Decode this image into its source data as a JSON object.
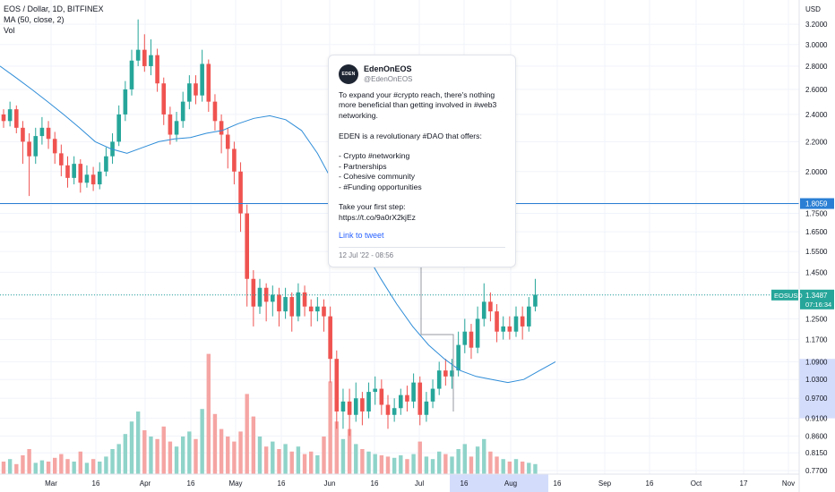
{
  "legend": {
    "symbol_line": "EOS / Dollar, 1D, BITFINEX",
    "ma_line": "MA (50, close, 2)",
    "vol_line": "Vol"
  },
  "colors": {
    "up": "#26a69a",
    "down": "#ef5350",
    "vol_up": "#8fd3c9",
    "vol_down": "#f5a5a3",
    "ma": "#2f8dd8",
    "hline": "#2a7fd4",
    "price_line": "#26a69a",
    "time_highlight": "#d3dcfb",
    "price_highlight": "#d3dcfb"
  },
  "tweet": {
    "name": "EdenOnEOS",
    "handle": "@EdenOnEOS",
    "avatar_text": "EDEN",
    "body": "To expand your #crypto reach, there's nothing more beneficial than getting involved in #web3 networking.\n\nEDEN is a revolutionary #DAO that offers:\n\n- Crypto #networking\n- Partnerships\n- Cohesive community\n- #Funding opportunities\n\nTake your first step:\nhttps://t.co/9a0rX2kjEz",
    "link_label": "Link to tweet",
    "date": "12 Jul '22 - 08:56"
  },
  "chart_data": {
    "type": "candlestick",
    "symbol": "EOSUSD",
    "currency_label": "USD",
    "y_scale": "log",
    "ylim": [
      0.755,
      3.38
    ],
    "price_ticks": [
      "3.2000",
      "3.0000",
      "2.8000",
      "2.6000",
      "2.4000",
      "2.2000",
      "2.0000",
      "1.8000",
      "1.7500",
      "1.6500",
      "1.5500",
      "1.4500",
      "1.3500",
      "1.2500",
      "1.1700",
      "1.0900",
      "1.0300",
      "0.9700",
      "0.9100",
      "0.8600",
      "0.8150",
      "0.7700"
    ],
    "time_ticks": [
      "Mar",
      "16",
      "Apr",
      "16",
      "May",
      "16",
      "Jun",
      "16",
      "Jul",
      "16",
      "Aug",
      "16",
      "Sep",
      "16",
      "Oct",
      "17",
      "Nov"
    ],
    "horizontal_line": {
      "value": 1.8059,
      "label": "1.8059"
    },
    "last_price": {
      "value": 1.3487,
      "label": "1.3487",
      "countdown": "07:16:34",
      "tag": "EOSUSD"
    },
    "ma_series": {
      "name": "MA (50, close, 2)",
      "values": [
        2.8,
        2.7,
        2.6,
        2.5,
        2.4,
        2.3,
        2.2,
        2.15,
        2.12,
        2.16,
        2.2,
        2.22,
        2.23,
        2.26,
        2.28,
        2.33,
        2.37,
        2.39,
        2.36,
        2.28,
        2.12,
        1.93,
        1.72,
        1.55,
        1.42,
        1.31,
        1.22,
        1.15,
        1.1,
        1.06,
        1.04,
        1.03,
        1.02,
        1.03,
        1.06,
        1.09
      ]
    },
    "candles": [
      [
        2.4,
        2.35,
        2.44,
        2.3
      ],
      [
        2.35,
        2.44,
        2.5,
        2.31
      ],
      [
        2.44,
        2.3,
        2.47,
        2.26
      ],
      [
        2.3,
        2.2,
        2.35,
        2.05
      ],
      [
        2.2,
        2.1,
        2.26,
        1.85
      ],
      [
        2.1,
        2.24,
        2.3,
        2.05
      ],
      [
        2.24,
        2.3,
        2.38,
        2.18
      ],
      [
        2.3,
        2.22,
        2.35,
        2.15
      ],
      [
        2.22,
        2.12,
        2.27,
        2.05
      ],
      [
        2.12,
        2.04,
        2.18,
        1.97
      ],
      [
        2.04,
        1.96,
        2.1,
        1.9
      ],
      [
        1.96,
        2.05,
        2.1,
        1.92
      ],
      [
        2.05,
        1.93,
        2.08,
        1.87
      ],
      [
        1.93,
        1.98,
        2.04,
        1.9
      ],
      [
        1.98,
        1.92,
        2.03,
        1.88
      ],
      [
        1.92,
        2.0,
        2.06,
        1.89
      ],
      [
        2.0,
        2.1,
        2.16,
        1.97
      ],
      [
        2.1,
        2.2,
        2.26,
        2.05
      ],
      [
        2.2,
        2.4,
        2.47,
        2.17
      ],
      [
        2.4,
        2.6,
        2.67,
        2.35
      ],
      [
        2.6,
        2.85,
        2.95,
        2.55
      ],
      [
        2.85,
        2.95,
        3.25,
        2.8
      ],
      [
        2.95,
        2.8,
        3.1,
        2.75
      ],
      [
        2.8,
        2.9,
        3.05,
        2.72
      ],
      [
        2.9,
        2.65,
        2.96,
        2.58
      ],
      [
        2.65,
        2.4,
        2.7,
        2.32
      ],
      [
        2.4,
        2.25,
        2.46,
        2.18
      ],
      [
        2.25,
        2.35,
        2.42,
        2.2
      ],
      [
        2.35,
        2.5,
        2.58,
        2.3
      ],
      [
        2.5,
        2.65,
        2.72,
        2.44
      ],
      [
        2.65,
        2.55,
        2.72,
        2.48
      ],
      [
        2.55,
        2.82,
        2.95,
        2.5
      ],
      [
        2.82,
        2.5,
        2.86,
        2.42
      ],
      [
        2.5,
        2.35,
        2.56,
        2.28
      ],
      [
        2.35,
        2.25,
        2.4,
        2.12
      ],
      [
        2.25,
        2.15,
        2.3,
        2.02
      ],
      [
        2.15,
        2.0,
        2.2,
        1.92
      ],
      [
        2.0,
        1.75,
        2.06,
        1.65
      ],
      [
        1.75,
        1.42,
        1.8,
        1.3
      ],
      [
        1.42,
        1.3,
        1.46,
        1.22
      ],
      [
        1.3,
        1.38,
        1.42,
        1.27
      ],
      [
        1.38,
        1.32,
        1.4,
        1.24
      ],
      [
        1.32,
        1.35,
        1.39,
        1.26
      ],
      [
        1.35,
        1.28,
        1.38,
        1.22
      ],
      [
        1.28,
        1.34,
        1.38,
        1.25
      ],
      [
        1.34,
        1.26,
        1.36,
        1.2
      ],
      [
        1.26,
        1.36,
        1.4,
        1.24
      ],
      [
        1.36,
        1.3,
        1.39,
        1.26
      ],
      [
        1.3,
        1.28,
        1.33,
        1.22
      ],
      [
        1.28,
        1.3,
        1.34,
        1.24
      ],
      [
        1.3,
        1.26,
        1.33,
        1.2
      ],
      [
        1.26,
        1.1,
        1.3,
        1.02
      ],
      [
        1.1,
        0.93,
        1.13,
        0.88
      ],
      [
        0.93,
        0.96,
        1.0,
        0.88
      ],
      [
        0.96,
        0.92,
        1.0,
        0.86
      ],
      [
        0.92,
        0.97,
        1.02,
        0.9
      ],
      [
        0.97,
        0.93,
        0.99,
        0.89
      ],
      [
        0.93,
        0.99,
        1.02,
        0.91
      ],
      [
        0.99,
        1.0,
        1.04,
        0.95
      ],
      [
        1.0,
        0.95,
        1.03,
        0.92
      ],
      [
        0.95,
        0.92,
        0.98,
        0.88
      ],
      [
        0.92,
        0.94,
        0.97,
        0.9
      ],
      [
        0.94,
        0.98,
        1.0,
        0.92
      ],
      [
        0.98,
        0.96,
        1.01,
        0.93
      ],
      [
        0.96,
        1.02,
        1.05,
        0.94
      ],
      [
        1.02,
        0.92,
        1.04,
        0.89
      ],
      [
        0.92,
        0.96,
        0.99,
        0.9
      ],
      [
        0.96,
        1.0,
        1.03,
        0.94
      ],
      [
        1.0,
        1.06,
        1.09,
        0.98
      ],
      [
        1.06,
        1.04,
        1.1,
        1.01
      ],
      [
        1.04,
        1.06,
        1.1,
        1.0
      ],
      [
        1.06,
        1.15,
        1.2,
        1.04
      ],
      [
        1.15,
        1.2,
        1.25,
        1.12
      ],
      [
        1.2,
        1.14,
        1.23,
        1.1
      ],
      [
        1.14,
        1.25,
        1.3,
        1.12
      ],
      [
        1.25,
        1.32,
        1.4,
        1.22
      ],
      [
        1.32,
        1.28,
        1.36,
        1.24
      ],
      [
        1.28,
        1.2,
        1.31,
        1.16
      ],
      [
        1.2,
        1.22,
        1.26,
        1.17
      ],
      [
        1.22,
        1.2,
        1.26,
        1.17
      ],
      [
        1.2,
        1.26,
        1.3,
        1.18
      ],
      [
        1.26,
        1.22,
        1.3,
        1.17
      ],
      [
        1.22,
        1.3,
        1.34,
        1.2
      ],
      [
        1.3,
        1.35,
        1.42,
        1.28
      ]
    ],
    "volume_relative": [
      0.1,
      0.12,
      0.08,
      0.15,
      0.2,
      0.09,
      0.11,
      0.1,
      0.13,
      0.16,
      0.12,
      0.1,
      0.18,
      0.09,
      0.12,
      0.1,
      0.14,
      0.2,
      0.24,
      0.32,
      0.42,
      0.5,
      0.35,
      0.3,
      0.28,
      0.38,
      0.26,
      0.22,
      0.3,
      0.34,
      0.28,
      0.52,
      0.96,
      0.48,
      0.36,
      0.3,
      0.26,
      0.34,
      0.64,
      0.46,
      0.3,
      0.22,
      0.26,
      0.2,
      0.24,
      0.18,
      0.22,
      0.16,
      0.18,
      0.15,
      0.3,
      0.74,
      0.42,
      0.28,
      0.36,
      0.24,
      0.2,
      0.18,
      0.16,
      0.15,
      0.14,
      0.13,
      0.15,
      0.12,
      0.16,
      0.26,
      0.14,
      0.12,
      0.18,
      0.16,
      0.14,
      0.2,
      0.24,
      0.14,
      0.22,
      0.28,
      0.18,
      0.14,
      0.12,
      0.1,
      0.12,
      0.1,
      0.09,
      0.08
    ]
  }
}
